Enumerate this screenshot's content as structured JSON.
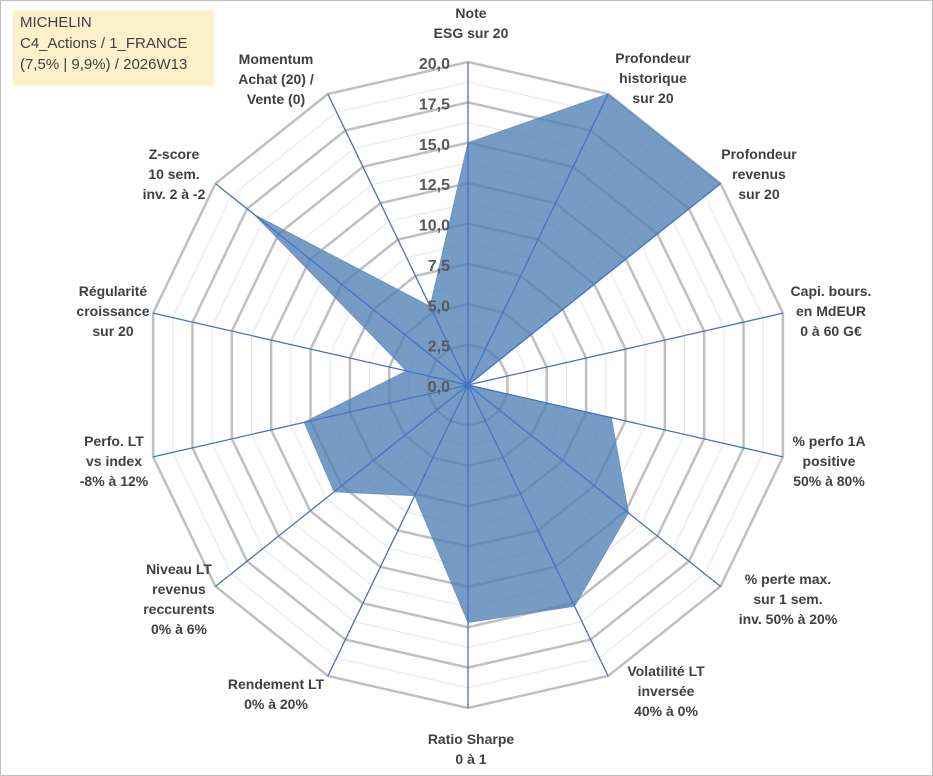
{
  "info_box": {
    "lines": [
      "MICHELIN",
      "C4_Actions / 1_FRANCE",
      "(7,5% | 9,9%) / 2026W13"
    ]
  },
  "chart_data": {
    "type": "radar",
    "title": "",
    "rlim": [
      0,
      20
    ],
    "ticks": [
      "0,0",
      "2,5",
      "5,0",
      "7,5",
      "10,0",
      "12,5",
      "15,0",
      "17,5",
      "20,0"
    ],
    "tick_values": [
      0,
      2.5,
      5,
      7.5,
      10,
      12.5,
      15,
      17.5,
      20
    ],
    "grid": true,
    "categories": [
      [
        "Note",
        "ESG sur 20"
      ],
      [
        "Profondeur",
        "historique",
        "sur 20"
      ],
      [
        "Profondeur",
        "revenus",
        "sur 20"
      ],
      [
        "Capi. bours.",
        "en MdEUR",
        "0 à 60 G€"
      ],
      [
        "% perfo 1A",
        "positive",
        "50% à 80%"
      ],
      [
        "% perte max.",
        "sur 1 sem.",
        "inv. 50% à 20%"
      ],
      [
        "Volatilité LT",
        "inversée",
        "40% à 0%"
      ],
      [
        "Ratio Sharpe",
        "0 à 1"
      ],
      [
        "Rendement LT",
        "0% à 20%"
      ],
      [
        "Niveau LT",
        "revenus",
        "reccurents",
        "0% à 6%"
      ],
      [
        "Perfo. LT",
        "vs index",
        "-8% à 12%"
      ],
      [
        "Régularité",
        "croissance",
        "sur 20"
      ],
      [
        "Z-score",
        "10 sem.",
        "inv. 2 à -2"
      ],
      [
        "Momentum",
        "Achat (20) /",
        "Vente (0)"
      ]
    ],
    "series": [
      {
        "values": [
          15.0,
          20.0,
          20.0,
          0.0,
          9.1,
          12.7,
          15.2,
          14.7,
          7.6,
          10.6,
          10.4,
          3.9,
          16.9,
          5.4
        ]
      }
    ],
    "colors": {
      "fill": "#4f7fb5",
      "axis": "#4472c4",
      "grid": "#bfbfbf",
      "text": "#404040",
      "tick": "#595959",
      "info_bg": "#fff0cc"
    }
  }
}
